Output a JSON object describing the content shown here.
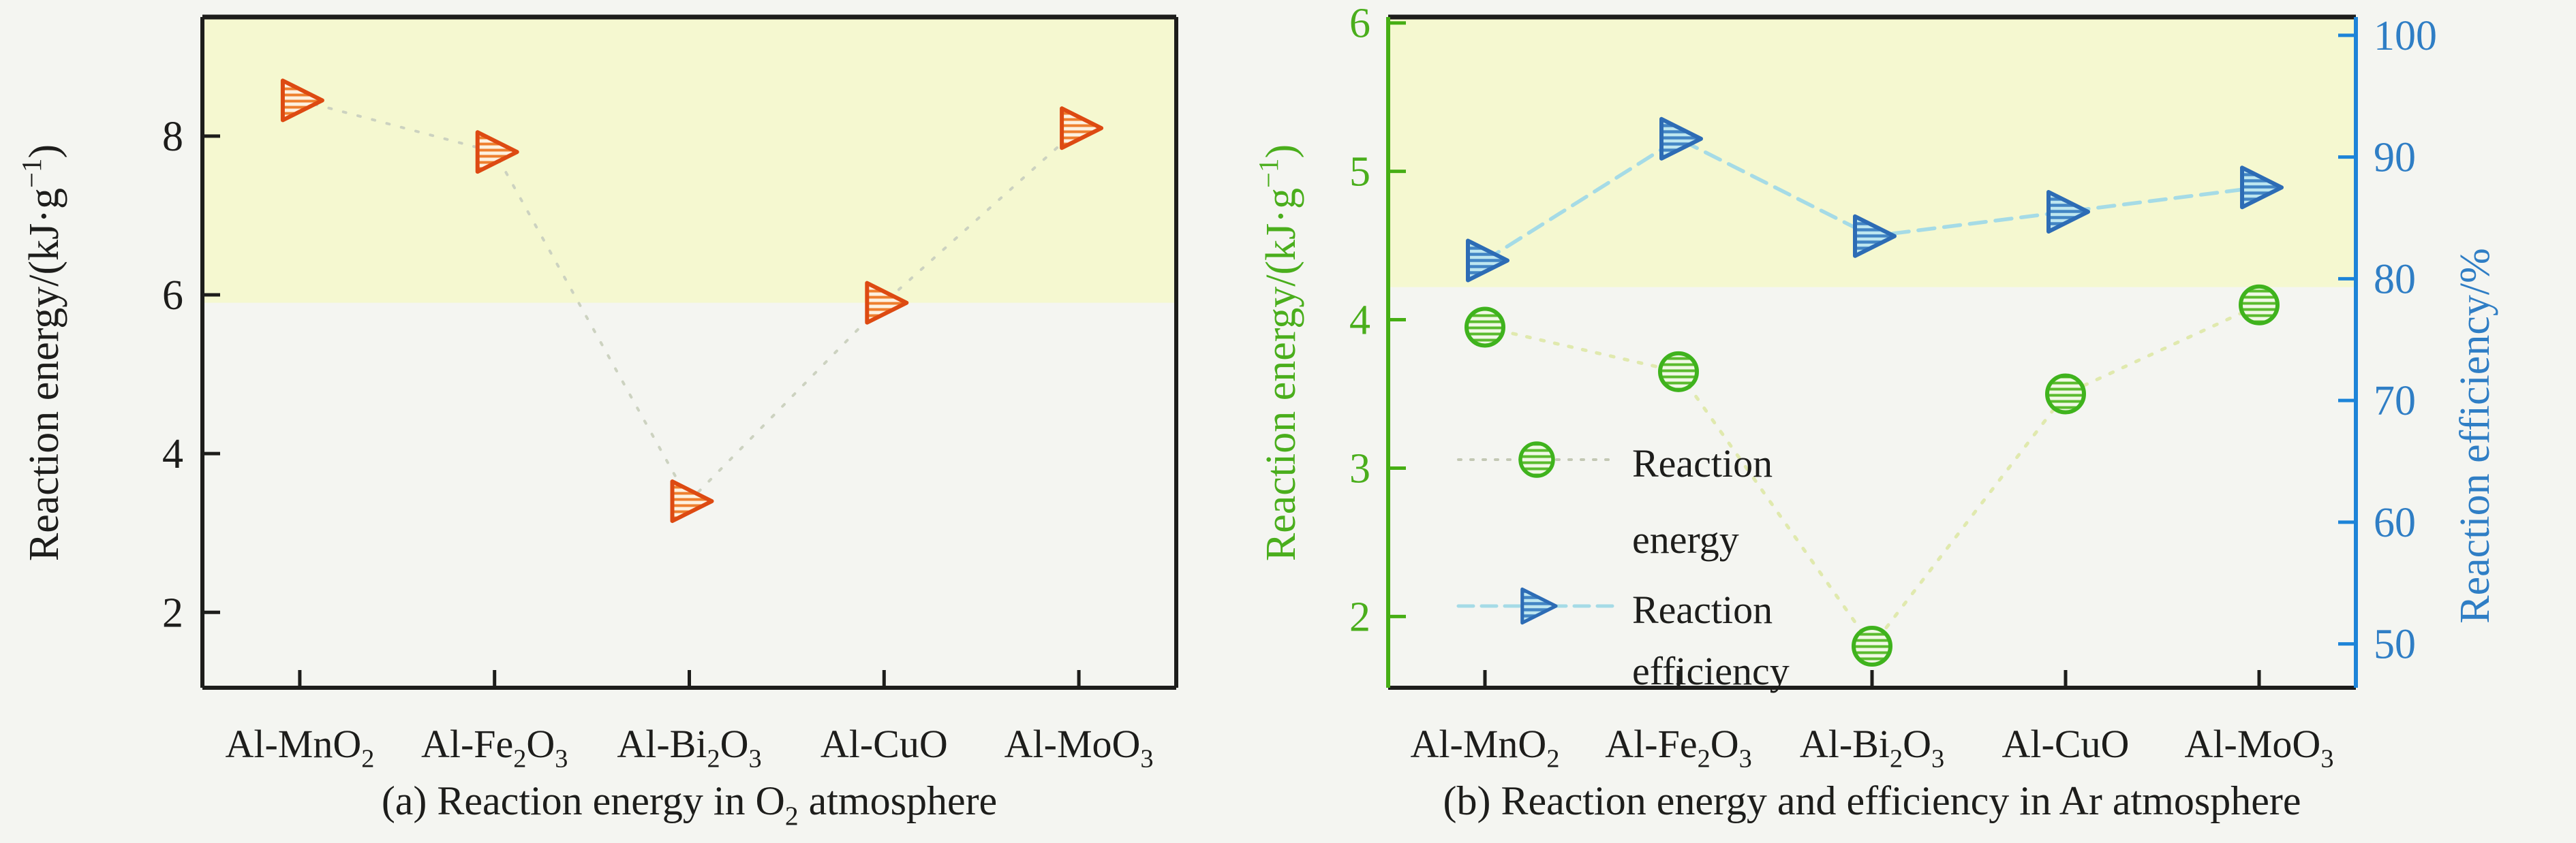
{
  "figure": {
    "background": "#f4f5f1",
    "band_color": "#f5f8d0",
    "text_color": "#1d1d1b"
  },
  "chart_data": [
    {
      "type": "scatter",
      "panel": "a",
      "title": "(a) Reaction energy in O2 atmosphere",
      "categories": [
        "Al-MnO2",
        "Al-Fe2O3",
        "Al-Bi2O3",
        "Al-CuO",
        "Al-MoO3"
      ],
      "series": [
        {
          "name": "Reaction energy",
          "axis": "left",
          "marker": "triangle-right",
          "color": "#dd4a12",
          "values": [
            8.45,
            7.8,
            3.4,
            5.9,
            8.1
          ]
        }
      ],
      "ylabel": "Reaction energy/(kJ·g−1)",
      "ylim": [
        1.05,
        9.5
      ],
      "yticks": [
        2,
        4,
        6,
        8
      ],
      "highlight_band": {
        "from": 5.9,
        "to": 9.5
      },
      "grid": false,
      "legend_position": "none"
    },
    {
      "type": "scatter",
      "panel": "b",
      "title": "(b) Reaction energy and efficiency in Ar atmosphere",
      "categories": [
        "Al-MnO2",
        "Al-Fe2O3",
        "Al-Bi2O3",
        "Al-CuO",
        "Al-MoO3"
      ],
      "series": [
        {
          "name": "Reaction energy",
          "axis": "left",
          "marker": "circle",
          "color": "#3fb31d",
          "values": [
            3.95,
            3.65,
            1.8,
            3.5,
            4.1
          ]
        },
        {
          "name": "Reaction efficiency",
          "axis": "right",
          "marker": "triangle-right",
          "color": "#2d6cb5",
          "values": [
            81.5,
            91.5,
            83.5,
            85.5,
            87.5
          ]
        }
      ],
      "ylabel_left": "Reaction energy/(kJ·g−1)",
      "ylabel_right": "Reaction efficiency/%",
      "ylim_left": [
        1.52,
        6.04
      ],
      "ylim_right": [
        46.4,
        101.5
      ],
      "yticks_left": [
        2,
        3,
        4,
        5,
        6
      ],
      "yticks_right": [
        50,
        60,
        70,
        80,
        90,
        100
      ],
      "highlight_band": {
        "from": 4.22,
        "to": 6.04
      },
      "grid": false,
      "legend_position": "inside-lower-left"
    }
  ],
  "rich_labels": {
    "energy_axis": [
      {
        "t": "Reaction energy/(kJ·g"
      },
      {
        "t": "−1",
        "sup": true
      },
      {
        "t": ")"
      }
    ],
    "efficiency_axis": [
      {
        "t": "Reaction efficiency/%"
      }
    ],
    "categories": [
      [
        {
          "t": "Al-MnO"
        },
        {
          "t": "2",
          "sub": true
        }
      ],
      [
        {
          "t": "Al-Fe"
        },
        {
          "t": "2",
          "sub": true
        },
        {
          "t": "O"
        },
        {
          "t": "3",
          "sub": true
        }
      ],
      [
        {
          "t": "Al-Bi"
        },
        {
          "t": "2",
          "sub": true
        },
        {
          "t": "O"
        },
        {
          "t": "3",
          "sub": true
        }
      ],
      [
        {
          "t": "Al-CuO"
        }
      ],
      [
        {
          "t": "Al-MoO"
        },
        {
          "t": "3",
          "sub": true
        }
      ]
    ],
    "caption_a": [
      {
        "t": "(a) Reaction energy in O"
      },
      {
        "t": "2",
        "sub": true
      },
      {
        "t": " atmosphere"
      }
    ],
    "caption_b": [
      {
        "t": "(b) Reaction energy and efficiency in Ar atmosphere"
      }
    ],
    "legend": [
      {
        "lines": [
          "Reaction",
          "energy"
        ]
      },
      {
        "lines": [
          "Reaction",
          "efficiency"
        ]
      }
    ]
  },
  "style": {
    "axis_black": "#1d1d1b",
    "axis_green": "#46ae14",
    "axis_blue": "#1d84d8",
    "tick_text_green": "#4aae1c",
    "tick_text_blue": "#2f7ec5",
    "marker_orange_stroke": "#dd4a12",
    "marker_orange_hatch": "#ee7f2e",
    "marker_orange_bg": "#fdf1e0",
    "marker_green_stroke": "#3fb31d",
    "marker_green_hatch": "#5bbb2e",
    "marker_green_bg": "#f1f9e5",
    "marker_blue_stroke": "#2d6cb5",
    "marker_blue_hatch": "#4285c4",
    "marker_blue_bg": "#bde6f0",
    "line_a": "#ccd2c0",
    "line_b_energy": "#e0e9ae",
    "line_b_efficiency": "#a5dbe6"
  }
}
